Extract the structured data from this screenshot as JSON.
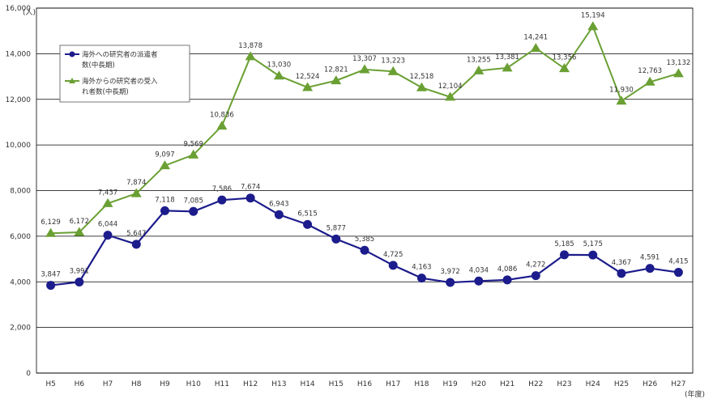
{
  "chart_data": {
    "type": "line",
    "ylabel": "(人)",
    "xlabel": "(年度)",
    "ylim": [
      0,
      16000
    ],
    "yticks": [
      0,
      2000,
      4000,
      6000,
      8000,
      10000,
      12000,
      14000,
      16000
    ],
    "ytick_labels": [
      "0",
      "2,000",
      "4,000",
      "6,000",
      "8,000",
      "10,000",
      "12,000",
      "14,000",
      "16,000"
    ],
    "grid": true,
    "legend_position": "top-left",
    "categories": [
      "H5",
      "H6",
      "H7",
      "H8",
      "H9",
      "H10",
      "H11",
      "H12",
      "H13",
      "H14",
      "H15",
      "H16",
      "H17",
      "H18",
      "H19",
      "H20",
      "H21",
      "H22",
      "H23",
      "H24",
      "H25",
      "H26",
      "H27"
    ],
    "series": [
      {
        "name": "海外への研究者の派遣者数(中長期)",
        "legend_lines": [
          "海外への研究者の派遣者",
          "数(中長期)"
        ],
        "color": "#1c1c8c",
        "marker": "circle",
        "values": [
          3847,
          3991,
          6044,
          5647,
          7118,
          7085,
          7586,
          7674,
          6943,
          6515,
          5877,
          5385,
          4725,
          4163,
          3972,
          4034,
          4086,
          4272,
          5185,
          5175,
          4367,
          4591,
          4415
        ],
        "labels": [
          "3,847",
          "3,991",
          "6,044",
          "5,647",
          "7,118",
          "7,085",
          "7,586",
          "7,674",
          "6,943",
          "6,515",
          "5,877",
          "5,385",
          "4,725",
          "4,163",
          "3,972",
          "4,034",
          "4,086",
          "4,272",
          "5,185",
          "5,175",
          "4,367",
          "4,591",
          "4,415"
        ]
      },
      {
        "name": "海外からの研究者の受入れ者数(中長期)",
        "legend_lines": [
          "海外からの研究者の受入",
          "れ者数(中長期)"
        ],
        "color": "#6aa033",
        "marker": "triangle",
        "values": [
          6129,
          6172,
          7437,
          7874,
          9097,
          9569,
          10836,
          13878,
          13030,
          12524,
          12821,
          13307,
          13223,
          12518,
          12104,
          13255,
          13381,
          14241,
          13356,
          15194,
          11930,
          12763,
          13132
        ],
        "labels": [
          "6,129",
          "6,172",
          "7,437",
          "7,874",
          "9,097",
          "9,569",
          "10,836",
          "13,878",
          "13,030",
          "12,524",
          "12,821",
          "13,307",
          "13,223",
          "12,518",
          "12,104",
          "13,255",
          "13,381",
          "14,241",
          "13,356",
          "15,194",
          "11,930",
          "12,763",
          "13,132"
        ]
      }
    ]
  }
}
